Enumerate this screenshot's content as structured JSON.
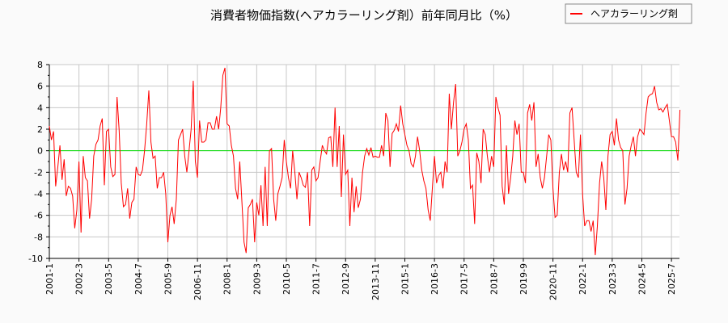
{
  "chart_data": {
    "type": "line",
    "title": "消費者物価指数(ヘアカラーリング剤）前年同月比（%）",
    "xlabel": "",
    "ylabel": "",
    "ylim": [
      -10,
      8
    ],
    "yticks": [
      8,
      6,
      4,
      2,
      0,
      -2,
      -4,
      -6,
      -8,
      -10
    ],
    "xticks": [
      "2001-1",
      "2002-3",
      "2003-5",
      "2004-7",
      "2005-9",
      "2006-11",
      "2008-1",
      "2009-3",
      "2010-5",
      "2011-7",
      "2012-9",
      "2013-11",
      "2015-1",
      "2016-3",
      "2017-5",
      "2018-7",
      "2019-9",
      "2020-11",
      "2022-1",
      "2023-3",
      "2024-5",
      "2025-7"
    ],
    "frequency": "monthly",
    "grid": true,
    "legend_position": "top-right",
    "colors": {
      "series": "#ff0000",
      "zero_line": "#00dd00",
      "grid": "#c8c8c8"
    },
    "series": [
      {
        "name": "ヘアカラーリング剤",
        "values": [
          2.3,
          1.0,
          1.8,
          -3.3,
          -1.5,
          0.5,
          -2.7,
          -0.8,
          -4.2,
          -3.3,
          -3.5,
          -4.2,
          -7.2,
          -5.5,
          -1,
          -7.6,
          -0.5,
          -2.5,
          -2.8,
          -6.3,
          -4.5,
          -0.5,
          0.6,
          1,
          2.3,
          3.0,
          -3.2,
          1.8,
          2.0,
          -1.5,
          -2.4,
          -2.2,
          5.0,
          1.9,
          -3.0,
          -5.2,
          -5.0,
          -3.5,
          -6.3,
          -4.8,
          -4.5,
          -1.5,
          -2.2,
          -2.3,
          -1.8,
          0,
          2.4,
          5.6,
          0.8,
          -0.7,
          -0.5,
          -3.5,
          -2.5,
          -2.5,
          -2.0,
          -4.0,
          -8.5,
          -6.0,
          -5.2,
          -6.8,
          -4.5,
          1.0,
          1.5,
          2.0,
          -0.5,
          -2.0,
          0,
          2.0,
          6.5,
          -1.0,
          -2.5,
          2.8,
          0.8,
          0.8,
          1.0,
          2.6,
          2.6,
          2.0,
          2.0,
          3.2,
          2.0,
          4.0,
          7.0,
          7.7,
          2.5,
          2.3,
          0.5,
          -0.5,
          -3.5,
          -4.5,
          -1.0,
          -4.8,
          -8.5,
          -9.5,
          -5.3,
          -5.0,
          -4.5,
          -8.5,
          -4.8,
          -6.0,
          -3.2,
          -7.0,
          -1.5,
          -7.0,
          0,
          0.2,
          -4.5,
          -6.5,
          -4.0,
          -3.3,
          -2.5,
          1.0,
          -1.0,
          -2.5,
          -3.5,
          0,
          -2.0,
          -4.5,
          -2.0,
          -2.5,
          -3.2,
          -3.4,
          -2.0,
          -7.0,
          -1.8,
          -1.5,
          -2.8,
          -2.5,
          -1.0,
          0.5,
          0,
          -0.3,
          1.2,
          1.3,
          -1.5,
          4.0,
          -1.5,
          2.3,
          -4.3,
          1.5,
          -2.2,
          -1.8,
          -7.0,
          -2.5,
          -5.7,
          -3.3,
          -5.3,
          -4.5,
          -2.0,
          -0.5,
          0.2,
          -0.4,
          0.3,
          -0.6,
          -0.5,
          -0.6,
          -0.6,
          0.5,
          -0.5,
          3.5,
          2.8,
          -1.5,
          1.6,
          1.9,
          2.5,
          1.8,
          4.2,
          2.5,
          1.5,
          0.5,
          0,
          -1.2,
          -1.5,
          -0.5,
          1.3,
          0,
          -1.8,
          -2.8,
          -3.5,
          -5.5,
          -6.5,
          -3.5,
          -0.5,
          -3.0,
          -2.3,
          -2.0,
          -3.5,
          -1.0,
          -2.0,
          5.3,
          2.0,
          4.5,
          6.2,
          -0.5,
          0,
          0.8,
          2.0,
          2.5,
          1.0,
          -3.5,
          -3.2,
          -6.8,
          -0.2,
          -1.0,
          -3.0,
          2.0,
          1.5,
          -0.5,
          -2.0,
          -0.5,
          -1.5,
          5.0,
          4.0,
          3.3,
          -3.3,
          -5.0,
          0.5,
          -4.0,
          -2.5,
          -0.5,
          2.8,
          1.5,
          2.5,
          -2.0,
          -2.0,
          -3.0,
          3.5,
          4.3,
          2.8,
          4.5,
          -1.5,
          -0.3,
          -2.5,
          -3.5,
          -2.5,
          -0.5,
          1.5,
          1.0,
          -3.5,
          -6.2,
          -6.0,
          -2.0,
          -0.3,
          -1.8,
          -1.0,
          -2.0,
          3.5,
          4.0,
          1.0,
          -2.0,
          -2.5,
          1.5,
          -4.0,
          -7.0,
          -6.5,
          -6.5,
          -7.5,
          -6.5,
          -9.7,
          -7.0,
          -3.0,
          -1.0,
          -2.5,
          -5.5,
          -0.5,
          1.5,
          1.8,
          0.5,
          3.0,
          1.0,
          0.3,
          0,
          -5.0,
          -3.5,
          -0.5,
          0.5,
          1.3,
          -0.5,
          1.3,
          2.0,
          1.8,
          1.5,
          3.5,
          5.0,
          5.2,
          5.3,
          6.0,
          4.5,
          3.8,
          3.9,
          3.6,
          4.0,
          4.3,
          2.8,
          1.3,
          1.3,
          0.8,
          -0.9,
          3.8
        ]
      }
    ]
  }
}
